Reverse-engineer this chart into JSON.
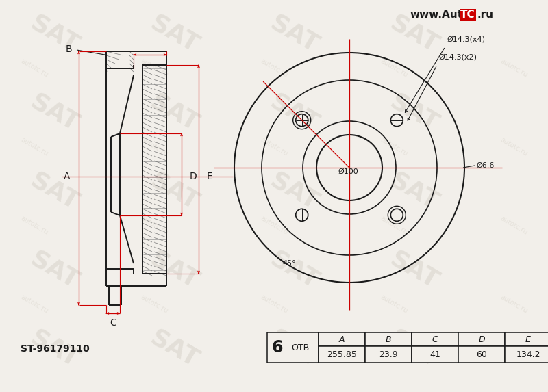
{
  "bg_color": "#f2efea",
  "line_color": "#1a1a1a",
  "red_color": "#cc0000",
  "part_number": "ST-96179110",
  "holes_count": "6",
  "holes_label": "ОТВ.",
  "table_headers": [
    "A",
    "B",
    "C",
    "D",
    "E"
  ],
  "table_values": [
    "255.85",
    "23.9",
    "41",
    "60",
    "134.2"
  ],
  "dim_labels": {
    "phi143x4": "Ø14.3(x4)",
    "phi143x2": "Ø14.3(x2)",
    "phi66": "Ø6.6",
    "phi100": "Ø100",
    "angle45": "45°"
  },
  "watermark_url": "www.AutoTC.ru"
}
